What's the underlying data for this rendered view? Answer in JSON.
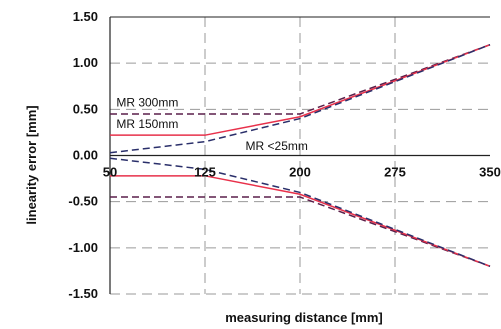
{
  "chart_data": {
    "type": "line",
    "xlabel": "measuring distance [mm]",
    "ylabel": "linearity error  [mm]",
    "xlim": [
      50,
      350
    ],
    "ylim": [
      -1.5,
      1.5
    ],
    "x_ticks": [
      50,
      125,
      200,
      275,
      350
    ],
    "x_tick_labels": [
      "50",
      "125",
      "200",
      "275",
      "350"
    ],
    "y_ticks": [
      1.5,
      1.0,
      0.5,
      0.0,
      -0.5,
      -1.0,
      -1.5
    ],
    "y_tick_labels": [
      "1.50",
      "1.00",
      "0.50",
      "0.00",
      "-0.50",
      "-1.00",
      "-1.50"
    ],
    "grid": true,
    "series": [
      {
        "name": "MR 300mm",
        "color": "#5a1f4a",
        "dashed": true,
        "upper": {
          "x": [
            50,
            200,
            350
          ],
          "y": [
            0.45,
            0.45,
            1.2
          ]
        },
        "lower": {
          "x": [
            50,
            200,
            350
          ],
          "y": [
            -0.45,
            -0.45,
            -1.2
          ]
        }
      },
      {
        "name": "MR 150mm",
        "color": "#e8304a",
        "dashed": false,
        "upper": {
          "x": [
            50,
            125,
            200,
            350
          ],
          "y": [
            0.22,
            0.22,
            0.42,
            1.2
          ]
        },
        "lower": {
          "x": [
            50,
            125,
            200,
            350
          ],
          "y": [
            -0.22,
            -0.22,
            -0.42,
            -1.2
          ]
        }
      },
      {
        "name": "MR <25mm",
        "color": "#2a2f6a",
        "dashed": true,
        "upper": {
          "x": [
            50,
            125,
            200,
            350
          ],
          "y": [
            0.03,
            0.15,
            0.4,
            1.2
          ]
        },
        "lower": {
          "x": [
            50,
            125,
            200,
            350
          ],
          "y": [
            -0.03,
            -0.15,
            -0.4,
            -1.2
          ]
        }
      }
    ],
    "annotations": [
      {
        "text": "MR 300mm",
        "x": 55,
        "y": 0.53
      },
      {
        "text": "MR 150mm",
        "x": 55,
        "y": 0.3
      },
      {
        "text": "MR <25mm",
        "x": 157,
        "y": 0.06
      }
    ]
  }
}
